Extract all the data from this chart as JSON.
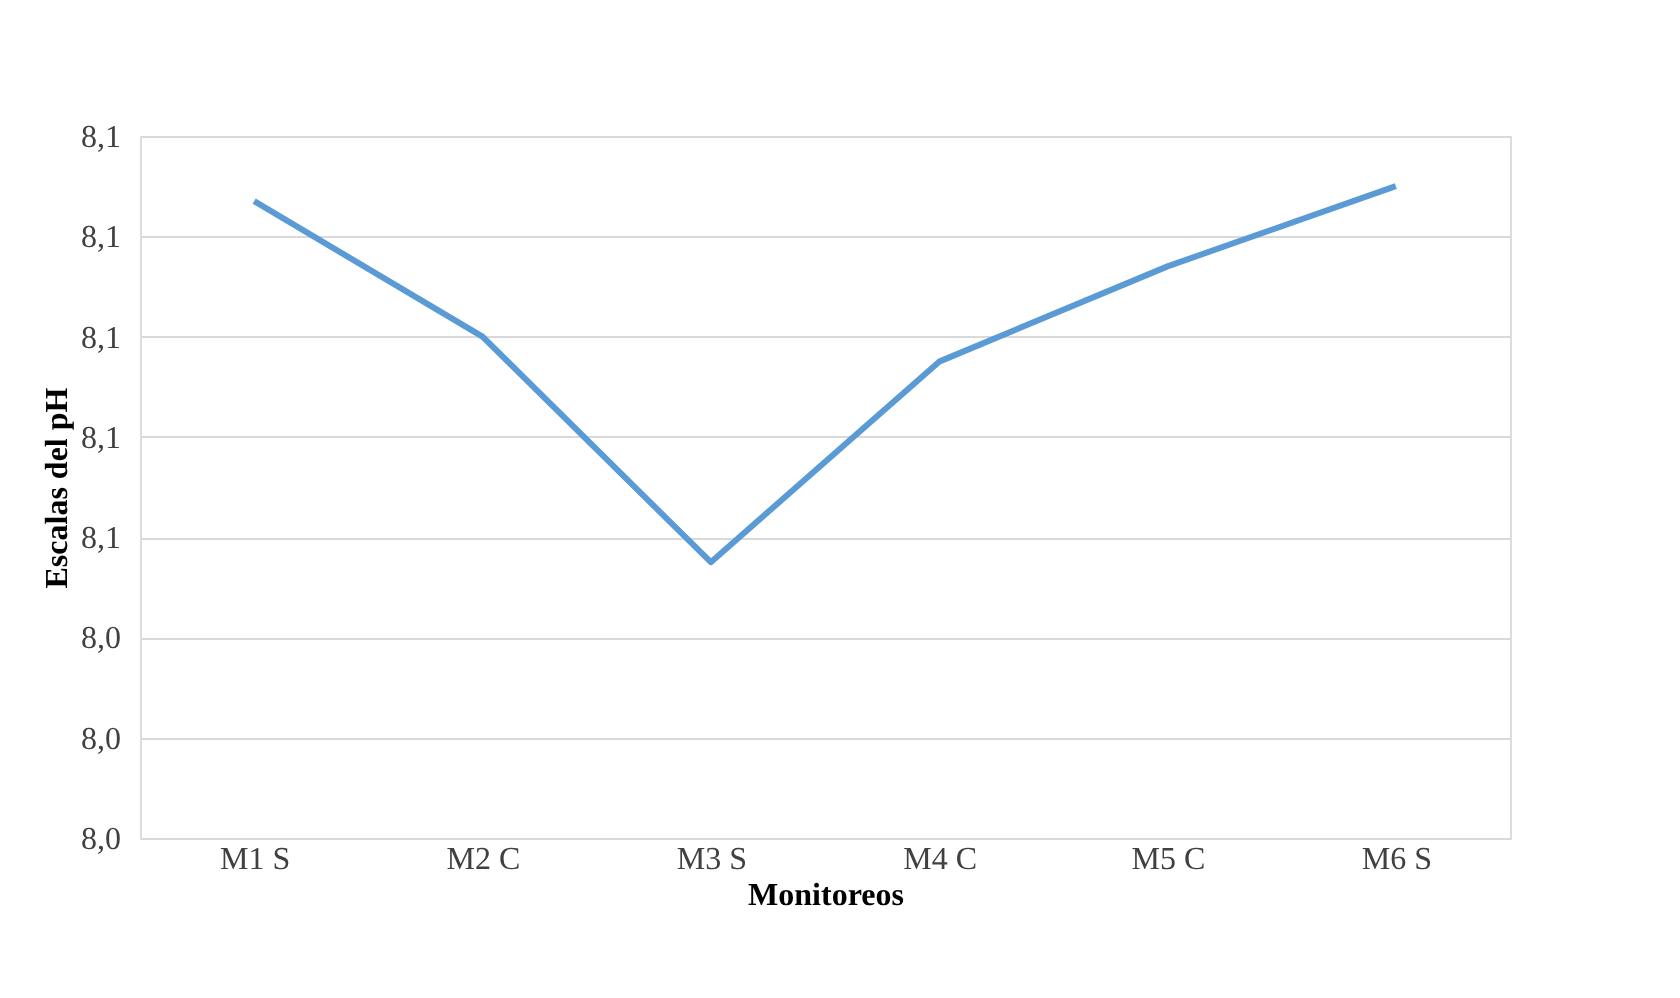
{
  "chart_data": {
    "type": "line",
    "xlabel": "Monitoreos",
    "ylabel": "Escalas del pH",
    "categories": [
      "M1 S",
      "M2 C",
      "M3 S",
      "M4 C",
      "M5 C",
      "M6 S"
    ],
    "series": [
      {
        "color": "#5b9bd5",
        "values": [
          8.127,
          8.1,
          8.055,
          8.095,
          8.114,
          8.13
        ]
      }
    ],
    "ylim": [
      8.0,
      8.14
    ],
    "yticks": [
      {
        "value": 8.0,
        "label": "8,0"
      },
      {
        "value": 8.02,
        "label": "8,0"
      },
      {
        "value": 8.04,
        "label": "8,0"
      },
      {
        "value": 8.06,
        "label": "8,1"
      },
      {
        "value": 8.08,
        "label": "8,1"
      },
      {
        "value": 8.1,
        "label": "8,1"
      },
      {
        "value": 8.12,
        "label": "8,1"
      },
      {
        "value": 8.14,
        "label": "8,1"
      }
    ],
    "grid": "y",
    "legend": false,
    "marker": "none",
    "line_style": "solid"
  }
}
